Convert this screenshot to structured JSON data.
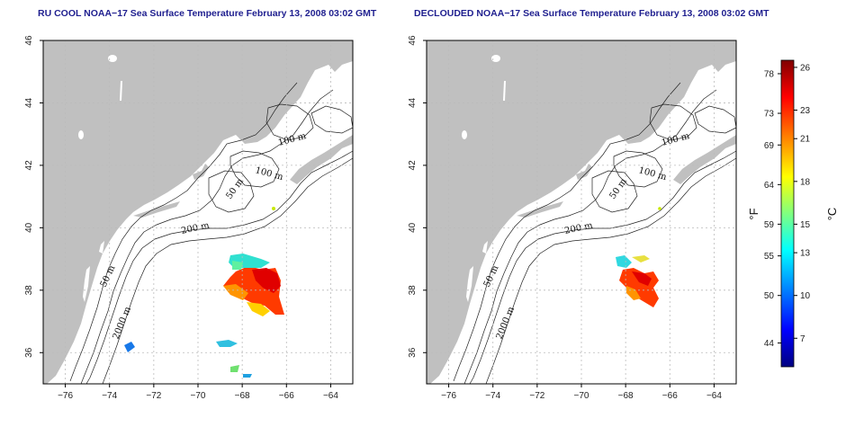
{
  "panels": [
    {
      "id": "left",
      "title": "RU COOL NOAA−17 Sea Surface Temperature February 13, 2008 03:02 GMT",
      "variant": "cloud"
    },
    {
      "id": "right",
      "title": "DECLOUDED NOAA−17 Sea Surface Temperature February 13, 2008 03:02 GMT",
      "variant": "declouded"
    }
  ],
  "x_ticks": [
    "−76",
    "−74",
    "−72",
    "−70",
    "−68",
    "−66",
    "−64"
  ],
  "x_tick_values": [
    -76,
    -74,
    -72,
    -70,
    -68,
    -66,
    -64
  ],
  "y_ticks": [
    "36",
    "38",
    "40",
    "42",
    "44",
    "46"
  ],
  "y_tick_values": [
    36,
    38,
    40,
    42,
    44,
    46
  ],
  "lon_range": [
    -77,
    -63
  ],
  "lat_range": [
    35,
    46
  ],
  "contour_labels": [
    "100 m",
    "100 m",
    "50 m",
    "200 m",
    "50 m",
    "2000 m"
  ],
  "colorbar": {
    "fahrenheit_ticks": [
      "78",
      "73",
      "69",
      "64",
      "59",
      "55",
      "50",
      "44"
    ],
    "fahrenheit_values": [
      78,
      73,
      69,
      64,
      59,
      55,
      50,
      44
    ],
    "celsius_ticks": [
      "26",
      "23",
      "21",
      "18",
      "15",
      "13",
      "10",
      "7"
    ],
    "celsius_values": [
      26,
      23,
      21,
      18,
      15,
      13,
      10,
      7
    ],
    "fahrenheit_unit": "°F",
    "celsius_unit": "°C",
    "celsius_range": [
      5,
      26.5
    ],
    "colors": [
      "#000080",
      "#0000ff",
      "#0080ff",
      "#00ffff",
      "#80ff80",
      "#ffff00",
      "#ff8000",
      "#ff0000",
      "#800000"
    ]
  },
  "colors": {
    "land": "#c0c0c0",
    "ocean": "#ffffff",
    "contour": "#222222",
    "grid": "#bbbbbb",
    "title": "#1f1f8f"
  }
}
